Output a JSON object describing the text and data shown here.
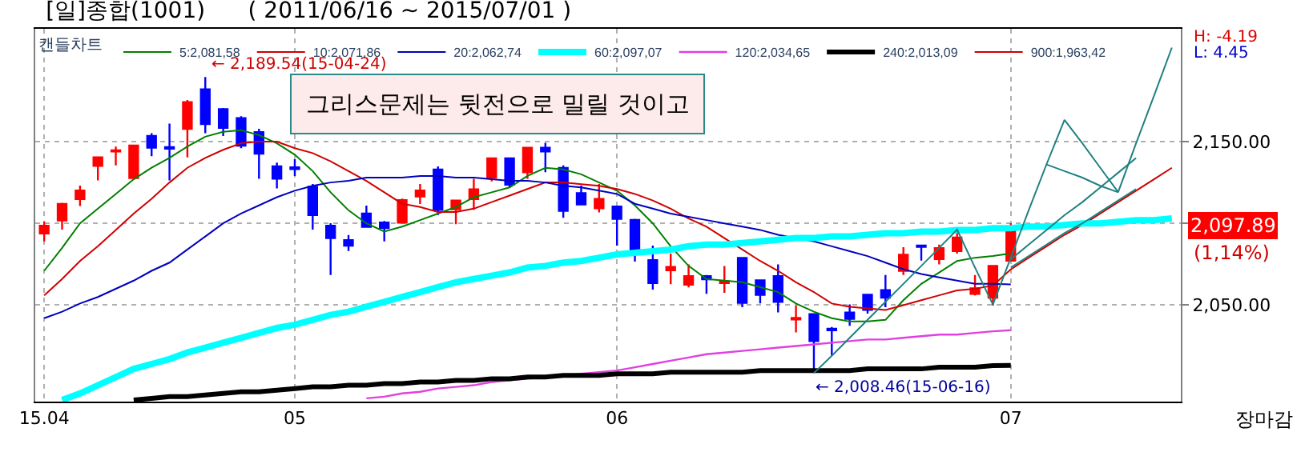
{
  "chart_data": {
    "type": "candlestick",
    "title": "[일]종합(1001)      ( 2011/06/16 ~ 2015/07/01 )",
    "legend_title": "캔들차트",
    "categories": [
      "15.04",
      null,
      null,
      null,
      null,
      null,
      null,
      null,
      null,
      null,
      null,
      null,
      null,
      null,
      "05",
      null,
      null,
      null,
      null,
      null,
      null,
      null,
      null,
      null,
      null,
      null,
      null,
      null,
      null,
      null,
      null,
      null,
      "06",
      null,
      null,
      null,
      null,
      null,
      null,
      null,
      null,
      null,
      null,
      null,
      null,
      null,
      null,
      null,
      null,
      null,
      null,
      null,
      null,
      null,
      "07",
      null,
      null,
      null,
      null,
      null,
      null,
      null,
      null,
      null
    ],
    "ohlc": [
      [
        2093.9,
        2101.1,
        2089.0,
        2098.5
      ],
      [
        2101.8,
        2112.6,
        2096.2,
        2111.9
      ],
      [
        2114.9,
        2123.1,
        2110.6,
        2120.1
      ],
      [
        2135.2,
        2140.8,
        2126.3,
        2140.4
      ],
      [
        2144.0,
        2147.0,
        2135.5,
        2144.7
      ],
      [
        2127.7,
        2148.0,
        2127.3,
        2147.6
      ],
      [
        2153.5,
        2155.2,
        2141.1,
        2146.3
      ],
      [
        2146.6,
        2161.0,
        2126.3,
        2145.7
      ],
      [
        2157.8,
        2175.5,
        2140.4,
        2174.1
      ],
      [
        2182.0,
        2189.54,
        2155.2,
        2160.7
      ],
      [
        2169.9,
        2170.6,
        2153.5,
        2158.4
      ],
      [
        2164.3,
        2165.6,
        2146.0,
        2147.6
      ],
      [
        2155.8,
        2157.8,
        2127.3,
        2142.7
      ],
      [
        2134.9,
        2137.2,
        2121.4,
        2127.3
      ],
      [
        2134.2,
        2139.4,
        2129.0,
        2133.2
      ],
      [
        2122.4,
        2124.1,
        2096.2,
        2105.1
      ],
      [
        2098.5,
        2100.1,
        2068.4,
        2091.0
      ],
      [
        2089.7,
        2092.9,
        2083.1,
        2086.4
      ],
      [
        2106.0,
        2110.9,
        2097.5,
        2097.9
      ],
      [
        2100.5,
        2101.5,
        2089.0,
        2097.2
      ],
      [
        2100.5,
        2115.2,
        2100.1,
        2114.2
      ],
      [
        2116.5,
        2124.1,
        2111.9,
        2120.1
      ],
      [
        2132.9,
        2134.9,
        2105.1,
        2108.3
      ],
      [
        2108.7,
        2114.2,
        2099.5,
        2113.9
      ],
      [
        2114.9,
        2127.3,
        2108.3,
        2120.8
      ],
      [
        2128.0,
        2140.4,
        2125.7,
        2139.8
      ],
      [
        2139.8,
        2140.4,
        2121.8,
        2123.7
      ],
      [
        2131.3,
        2146.3,
        2127.3,
        2146.3
      ],
      [
        2146.3,
        2149.3,
        2131.3,
        2144.0
      ],
      [
        2133.9,
        2135.5,
        2103.4,
        2107.7
      ],
      [
        2118.5,
        2123.1,
        2111.3,
        2111.6
      ],
      [
        2109.3,
        2124.1,
        2106.7,
        2114.9
      ],
      [
        2110.3,
        2110.9,
        2086.4,
        2102.8
      ],
      [
        2102.1,
        2102.8,
        2076.6,
        2081.5
      ],
      [
        2077.5,
        2086.4,
        2059.5,
        2063.5
      ],
      [
        2071.3,
        2081.5,
        2062.8,
        2073.3
      ],
      [
        2062.5,
        2074.9,
        2060.9,
        2067.7
      ],
      [
        2067.7,
        2068.4,
        2056.9,
        2065.8
      ],
      [
        2063.5,
        2073.9,
        2057.6,
        2064.5
      ],
      [
        2078.9,
        2079.2,
        2048.7,
        2051.4
      ],
      [
        2065.1,
        2065.1,
        2051.0,
        2056.3
      ],
      [
        2067.7,
        2074.9,
        2045.5,
        2052.0
      ],
      [
        2041.2,
        2049.7,
        2033.3,
        2042.2
      ],
      [
        2044.5,
        2044.8,
        2008.46,
        2028.1
      ],
      [
        2035.6,
        2036.6,
        2019.3,
        2034.7
      ],
      [
        2045.5,
        2050.4,
        2037.3,
        2041.6
      ],
      [
        2056.3,
        2056.9,
        2044.8,
        2047.1
      ],
      [
        2059.2,
        2068.4,
        2048.7,
        2054.6
      ],
      [
        2071.0,
        2085.4,
        2068.4,
        2080.8
      ],
      [
        2086.4,
        2087.0,
        2077.2,
        2085.7
      ],
      [
        2078.2,
        2087.0,
        2074.9,
        2084.8
      ],
      [
        2083.1,
        2096.2,
        2081.5,
        2091.3
      ],
      [
        2056.9,
        2068.4,
        2055.9,
        2060.2
      ],
      [
        2054.6,
        2074.3,
        2049.7,
        2073.9
      ],
      [
        2077.2,
        2100.1,
        2076.6,
        2097.89
      ],
      null,
      null,
      null,
      null,
      null,
      null,
      null,
      null,
      null
    ],
    "colors": [
      "#ff0000",
      "#ff0000",
      "#ff0000",
      "#ff0000",
      "#ff0000",
      "#ff0000",
      "#0000ff",
      "#0000ff",
      "#ff0000",
      "#0000ff",
      "#0000ff",
      "#0000ff",
      "#0000ff",
      "#0000ff",
      "#0000ff",
      "#0000ff",
      "#0000ff",
      "#0000ff",
      "#0000ff",
      "#0000ff",
      "#ff0000",
      "#ff0000",
      "#0000ff",
      "#ff0000",
      "#ff0000",
      "#ff0000",
      "#0000ff",
      "#ff0000",
      "#0000ff",
      "#0000ff",
      "#0000ff",
      "#ff0000",
      "#0000ff",
      "#0000ff",
      "#0000ff",
      "#ff0000",
      "#ff0000",
      "#0000ff",
      "#ff0000",
      "#0000ff",
      "#0000ff",
      "#0000ff",
      "#ff0000",
      "#0000ff",
      "#0000ff",
      "#0000ff",
      "#0000ff",
      "#0000ff",
      "#ff0000",
      "#0000ff",
      "#ff0000",
      "#ff0000",
      "#ff0000",
      "#ff0000",
      "#ff0000",
      null,
      null,
      null,
      null,
      null,
      null,
      null,
      null,
      null
    ],
    "series": [
      {
        "name": "5:2,081,58",
        "type": "line",
        "color": "#008000",
        "values": [
          2071,
          2085,
          2100,
          2109,
          2118,
          2127,
          2134,
          2140,
          2147,
          2153,
          2156,
          2157,
          2154,
          2149,
          2142,
          2132,
          2119,
          2108,
          2100,
          2095,
          2098,
          2102,
          2106,
          2110,
          2116,
          2119,
          2122,
          2129,
          2134,
          2133,
          2130,
          2125,
          2120,
          2111,
          2100,
          2086,
          2074,
          2066,
          2065,
          2064,
          2061,
          2058,
          2051,
          2046,
          2042,
          2040,
          2040,
          2041,
          2053,
          2063,
          2070,
          2077,
          2079,
          2080,
          2081.58,
          null,
          null,
          null,
          null,
          null,
          null,
          null,
          null,
          null
        ]
      },
      {
        "name": "10:2,071,86",
        "type": "line",
        "color": "#d00000",
        "values": [
          2056,
          2066,
          2077,
          2086,
          2096,
          2106,
          2115,
          2125,
          2134,
          2140,
          2145,
          2149,
          2150,
          2150,
          2146,
          2143,
          2138,
          2132,
          2126,
          2119,
          2112,
          2110,
          2107,
          2107,
          2109,
          2113,
          2117,
          2121,
          2125,
          2125,
          2124,
          2123,
          2121,
          2118,
          2114,
          2109,
          2103,
          2098,
          2091,
          2084,
          2077,
          2071,
          2064,
          2058,
          2051,
          2049,
          2048,
          2047,
          2050,
          2053,
          2056,
          2059,
          2060,
          2062,
          2071.86,
          2079,
          2086,
          2093,
          2099,
          2106,
          2113,
          2120,
          2127,
          2134
        ]
      },
      {
        "name": "20:2,062,74",
        "type": "line",
        "color": "#0000c0",
        "values": [
          2042,
          2046,
          2051,
          2055,
          2060,
          2065,
          2071,
          2076,
          2084,
          2092,
          2100,
          2106,
          2111,
          2116,
          2120,
          2123,
          2125,
          2126,
          2128,
          2128,
          2128,
          2129,
          2129,
          2128,
          2128,
          2127,
          2126,
          2126,
          2125,
          2123,
          2122,
          2120,
          2118,
          2112,
          2109,
          2106,
          2104,
          2102,
          2100,
          2098,
          2096,
          2093,
          2091,
          2089,
          2086,
          2083,
          2080,
          2076,
          2072,
          2069,
          2067,
          2065,
          2063,
          2063,
          2062.74,
          null,
          null,
          null,
          null,
          null,
          null,
          null,
          null,
          null
        ]
      },
      {
        "name": "60:2,097,07",
        "type": "line",
        "color": "#00ffff",
        "values": [
          null,
          1992,
          1996,
          2001,
          2006,
          2011,
          2014,
          2017,
          2021,
          2024,
          2027,
          2030,
          2033,
          2036,
          2038,
          2041,
          2044,
          2046,
          2049,
          2052,
          2055,
          2058,
          2061,
          2064,
          2066,
          2068,
          2070,
          2073,
          2074,
          2076,
          2077,
          2079,
          2081,
          2082,
          2083,
          2084,
          2086,
          2087,
          2087,
          2088,
          2089,
          2090,
          2091,
          2091,
          2092,
          2092,
          2093,
          2094,
          2094,
          2095,
          2095,
          2096,
          2096,
          2097,
          2097.07,
          2098,
          2098,
          2099,
          2100,
          2100,
          2101,
          2102,
          2102,
          2103
        ]
      },
      {
        "name": "120:2,034,65",
        "type": "line",
        "color": "#e040e0",
        "values": [
          null,
          null,
          null,
          null,
          null,
          null,
          null,
          null,
          null,
          null,
          null,
          null,
          null,
          null,
          null,
          null,
          null,
          null,
          1993,
          1994,
          1996,
          1997,
          1999,
          2000,
          2001,
          2003,
          2004,
          2005,
          2006,
          2007,
          2008,
          2009,
          2010,
          2012,
          2014,
          2016,
          2018,
          2020,
          2021,
          2022,
          2023,
          2024,
          2025,
          2026,
          2027,
          2028,
          2029,
          2029,
          2030,
          2031,
          2032,
          2032,
          2033,
          2034,
          2034.65,
          null,
          null,
          null,
          null,
          null,
          null,
          null,
          null,
          null
        ]
      },
      {
        "name": "240:2,013,09",
        "type": "line",
        "color": "#000000",
        "values": [
          null,
          null,
          null,
          null,
          null,
          1992,
          1993,
          1994,
          1994,
          1995,
          1996,
          1997,
          1997,
          1998,
          1999,
          2000,
          2000,
          2001,
          2001,
          2002,
          2002,
          2003,
          2003,
          2004,
          2004,
          2005,
          2005,
          2006,
          2006,
          2007,
          2007,
          2007,
          2008,
          2008,
          2008,
          2009,
          2009,
          2009,
          2009,
          2009,
          2010,
          2010,
          2010,
          2010,
          2010,
          2010,
          2011,
          2011,
          2011,
          2011,
          2012,
          2012,
          2012,
          2013,
          2013.09,
          null,
          null,
          null,
          null,
          null,
          null,
          null,
          null,
          null
        ]
      },
      {
        "name": "900:1,963,42",
        "type": "line",
        "color": "#d00000",
        "values": [
          null,
          null,
          null,
          null,
          null,
          null,
          null,
          null,
          null,
          null,
          null,
          null,
          null,
          null,
          null,
          null,
          null,
          null,
          null,
          null,
          null,
          null,
          null,
          null,
          null,
          null,
          null,
          null,
          null,
          null,
          null,
          null,
          null,
          null,
          null,
          null,
          null,
          null,
          null,
          null,
          null,
          null,
          null,
          null,
          null,
          null,
          null,
          null,
          null,
          null,
          null,
          null,
          null,
          null,
          null,
          null,
          null,
          null,
          null,
          null,
          null,
          null,
          null,
          null
        ]
      },
      {
        "type": "line",
        "color": "#208080",
        "values": [
          null,
          null,
          null,
          null,
          null,
          null,
          null,
          null,
          null,
          null,
          null,
          null,
          null,
          null,
          null,
          null,
          null,
          null,
          null,
          null,
          null,
          null,
          null,
          null,
          null,
          null,
          null,
          null,
          null,
          null,
          null,
          null,
          null,
          null,
          null,
          null,
          null,
          null,
          null,
          null,
          null,
          null,
          null,
          2008.46,
          2019,
          2030,
          2041,
          2052,
          2063,
          2074,
          2085,
          2096.2,
          2073,
          2050.4,
          2079,
          2108,
          2136.2,
          2163.3,
          2149,
          2134,
          2119.1,
          2149,
          2178,
          2207.5
        ]
      },
      {
        "type": "line",
        "color": "#208080",
        "values": [
          null,
          null,
          null,
          null,
          null,
          null,
          null,
          null,
          null,
          null,
          null,
          null,
          null,
          null,
          null,
          null,
          null,
          null,
          null,
          null,
          null,
          null,
          null,
          null,
          null,
          null,
          null,
          null,
          null,
          null,
          null,
          null,
          null,
          null,
          null,
          null,
          null,
          null,
          null,
          null,
          null,
          null,
          null,
          null,
          null,
          null,
          null,
          null,
          null,
          null,
          null,
          null,
          null,
          null,
          2078,
          2087,
          2096,
          2105,
          2113,
          2122,
          2131,
          2140,
          null,
          null
        ]
      },
      {
        "type": "line",
        "color": "#208080",
        "values": [
          null,
          null,
          null,
          null,
          null,
          null,
          null,
          null,
          null,
          null,
          null,
          null,
          null,
          null,
          null,
          null,
          null,
          null,
          null,
          null,
          null,
          null,
          null,
          null,
          null,
          null,
          null,
          null,
          null,
          null,
          null,
          null,
          null,
          null,
          null,
          null,
          null,
          null,
          null,
          null,
          null,
          null,
          null,
          null,
          null,
          null,
          null,
          null,
          null,
          null,
          null,
          null,
          null,
          null,
          null,
          null,
          2136,
          2132,
          2128,
          2123,
          2119,
          null,
          null,
          null
        ]
      },
      {
        "type": "line",
        "color": "#208080",
        "values": [
          null,
          null,
          null,
          null,
          null,
          null,
          null,
          null,
          null,
          null,
          null,
          null,
          null,
          null,
          null,
          null,
          null,
          null,
          null,
          null,
          null,
          null,
          null,
          null,
          null,
          null,
          null,
          null,
          null,
          null,
          null,
          null,
          null,
          null,
          null,
          null,
          null,
          null,
          null,
          null,
          null,
          null,
          null,
          null,
          null,
          null,
          null,
          null,
          null,
          null,
          null,
          null,
          null,
          null,
          2073,
          2080,
          2087,
          2094,
          2100,
          2107,
          2114,
          2121,
          null,
          null
        ]
      }
    ],
    "ylim": [
      1991,
      2219
    ],
    "yticks": [
      {
        "value": 2050,
        "label": "2,050.00"
      },
      {
        "value": 2100,
        "label": null
      },
      {
        "value": 2150,
        "label": "2,150.00"
      }
    ],
    "grid": true,
    "legend": "top left",
    "annotations": [
      "← 2,189.54(15-04-24)",
      "← 2,008.46(15-06-16)",
      "그리스문제는 뒷전으로 밀릴 것이고",
      "H: -4.19",
      "L: 4.45",
      "2,097.89",
      "(1,14%)",
      "장마감"
    ]
  }
}
